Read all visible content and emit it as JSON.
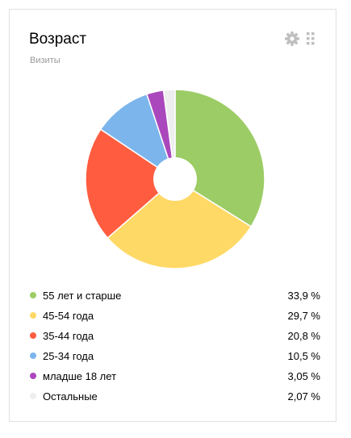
{
  "widget": {
    "title": "Возраст",
    "subtitle": "Визиты",
    "icons": {
      "settings": "gear-icon",
      "drag": "drag-handle-icon"
    },
    "icon_color": "#bfbfbf"
  },
  "chart_data": {
    "type": "pie",
    "donut": true,
    "legend_position": "bottom",
    "categories": [
      "55 лет и старше",
      "45-54 года",
      "35-44 года",
      "25-34 года",
      "младше 18 лет",
      "Остальные"
    ],
    "values": [
      33.9,
      29.7,
      20.8,
      10.5,
      3.05,
      2.07
    ],
    "value_labels": [
      "33,9 %",
      "29,7 %",
      "20,8 %",
      "10,5 %",
      "3,05 %",
      "2,07 %"
    ],
    "colors": [
      "#9ccc65",
      "#ffd966",
      "#ff5c40",
      "#7cb5ec",
      "#ab47bc",
      "#eeeeee"
    ]
  }
}
